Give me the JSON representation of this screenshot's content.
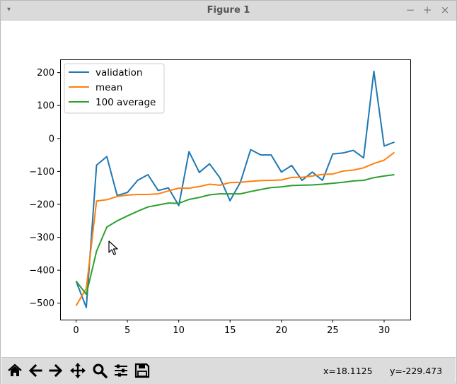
{
  "window": {
    "title": "Figure 1",
    "menu_glyph": "▾",
    "controls": {
      "minimize": "−",
      "maximize": "+",
      "close": "×"
    }
  },
  "toolbar": {
    "buttons": [
      "home-icon",
      "back-arrow-icon",
      "forward-arrow-icon",
      "pan-move-icon",
      "zoom-magnifier-icon",
      "configure-subplots-icon",
      "save-floppy-icon"
    ],
    "x_readout": "x=18.1125",
    "y_readout": "y=-229.473"
  },
  "chart_data": {
    "type": "line",
    "title": "",
    "xlabel": "",
    "ylabel": "",
    "xlim": [
      -1.55,
      32.55
    ],
    "ylim": [
      -550,
      240
    ],
    "xticks": [
      0,
      5,
      10,
      15,
      20,
      25,
      30
    ],
    "xtick_labels": [
      "0",
      "5",
      "10",
      "15",
      "20",
      "25",
      "30"
    ],
    "yticks": [
      200,
      100,
      0,
      -100,
      -200,
      -300,
      -400,
      -500
    ],
    "ytick_labels": [
      "200",
      "100",
      "0",
      "−100",
      "−200",
      "−300",
      "−400",
      "−500"
    ],
    "grid": false,
    "legend_position": "top-left",
    "x": [
      0,
      1,
      2,
      3,
      4,
      5,
      6,
      7,
      8,
      9,
      10,
      11,
      12,
      13,
      14,
      15,
      16,
      17,
      18,
      19,
      20,
      21,
      22,
      23,
      24,
      25,
      26,
      27,
      28,
      29,
      30,
      31
    ],
    "series": [
      {
        "name": "validation",
        "color": "#1f77b4",
        "values": [
          -433,
          -513,
          -81,
          -55,
          -173,
          -164,
          -127,
          -110,
          -158,
          -150,
          -204,
          -40,
          -103,
          -77,
          -119,
          -189,
          -133,
          -34,
          -50,
          -50,
          -102,
          -82,
          -127,
          -102,
          -127,
          -47,
          -44,
          -36,
          -59,
          204,
          -23,
          -11
        ]
      },
      {
        "name": "mean",
        "color": "#ff7f0e",
        "values": [
          -508,
          -455,
          -190,
          -186,
          -176,
          -172,
          -170,
          -170,
          -168,
          -159,
          -151,
          -151,
          -146,
          -139,
          -142,
          -134,
          -133,
          -130,
          -128,
          -127,
          -126,
          -118,
          -118,
          -114,
          -109,
          -108,
          -99,
          -96,
          -89,
          -76,
          -66,
          -42
        ]
      },
      {
        "name": "100 average",
        "color": "#2ca02c",
        "values": [
          -433,
          -473,
          -342,
          -269,
          -250,
          -235,
          -221,
          -208,
          -202,
          -196,
          -197,
          -185,
          -179,
          -171,
          -168,
          -168,
          -168,
          -161,
          -155,
          -149,
          -147,
          -143,
          -142,
          -141,
          -139,
          -136,
          -133,
          -129,
          -127,
          -119,
          -114,
          -110
        ]
      }
    ]
  }
}
